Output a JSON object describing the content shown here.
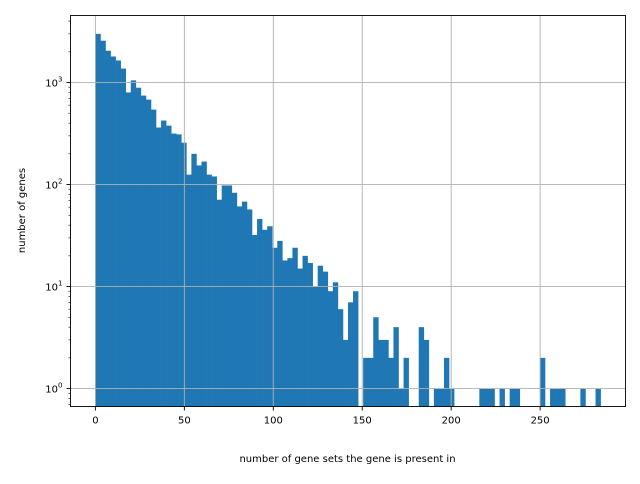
{
  "chart_data": {
    "type": "bar",
    "subtype": "histogram",
    "title": "",
    "xlabel": "number of gene sets the gene is present in",
    "ylabel": "number of genes",
    "xlim": [
      -14,
      298
    ],
    "ylim": [
      0.667,
      4540
    ],
    "yscale": "log",
    "grid": true,
    "bar_color": "#1f77b4",
    "grid_color": "#b0b0b0",
    "bin_start": 0,
    "bin_width": 2.84,
    "x_ticks": [
      0,
      50,
      100,
      150,
      200,
      250
    ],
    "x_tick_labels": [
      "0",
      "50",
      "100",
      "150",
      "200",
      "250"
    ],
    "y_ticks": [
      1,
      10,
      100,
      1000
    ],
    "y_tick_labels": [
      {
        "base": "10",
        "exp": "0"
      },
      {
        "base": "10",
        "exp": "1"
      },
      {
        "base": "10",
        "exp": "2"
      },
      {
        "base": "10",
        "exp": "3"
      }
    ],
    "values": [
      3000,
      2570,
      2050,
      1800,
      1645,
      1370,
      800,
      1050,
      890,
      745,
      680,
      543,
      362,
      424,
      378,
      316,
      310,
      257,
      125,
      200,
      154,
      168,
      125,
      120,
      71,
      98,
      98,
      83,
      61,
      68,
      57,
      32,
      46,
      36,
      39,
      24,
      28,
      18,
      19,
      24,
      15,
      20,
      17,
      10,
      16,
      14,
      9,
      11,
      6,
      3,
      7,
      9,
      0,
      2,
      2,
      5,
      3,
      3,
      2,
      4,
      1,
      2,
      0,
      0,
      4,
      3,
      0,
      1,
      1,
      2,
      1,
      0,
      0,
      0,
      0,
      0,
      1,
      1,
      1,
      0,
      1,
      0,
      1,
      1,
      0,
      0,
      0,
      0,
      2,
      0,
      1,
      1,
      1,
      0,
      0,
      0,
      1,
      0,
      0,
      1
    ]
  }
}
